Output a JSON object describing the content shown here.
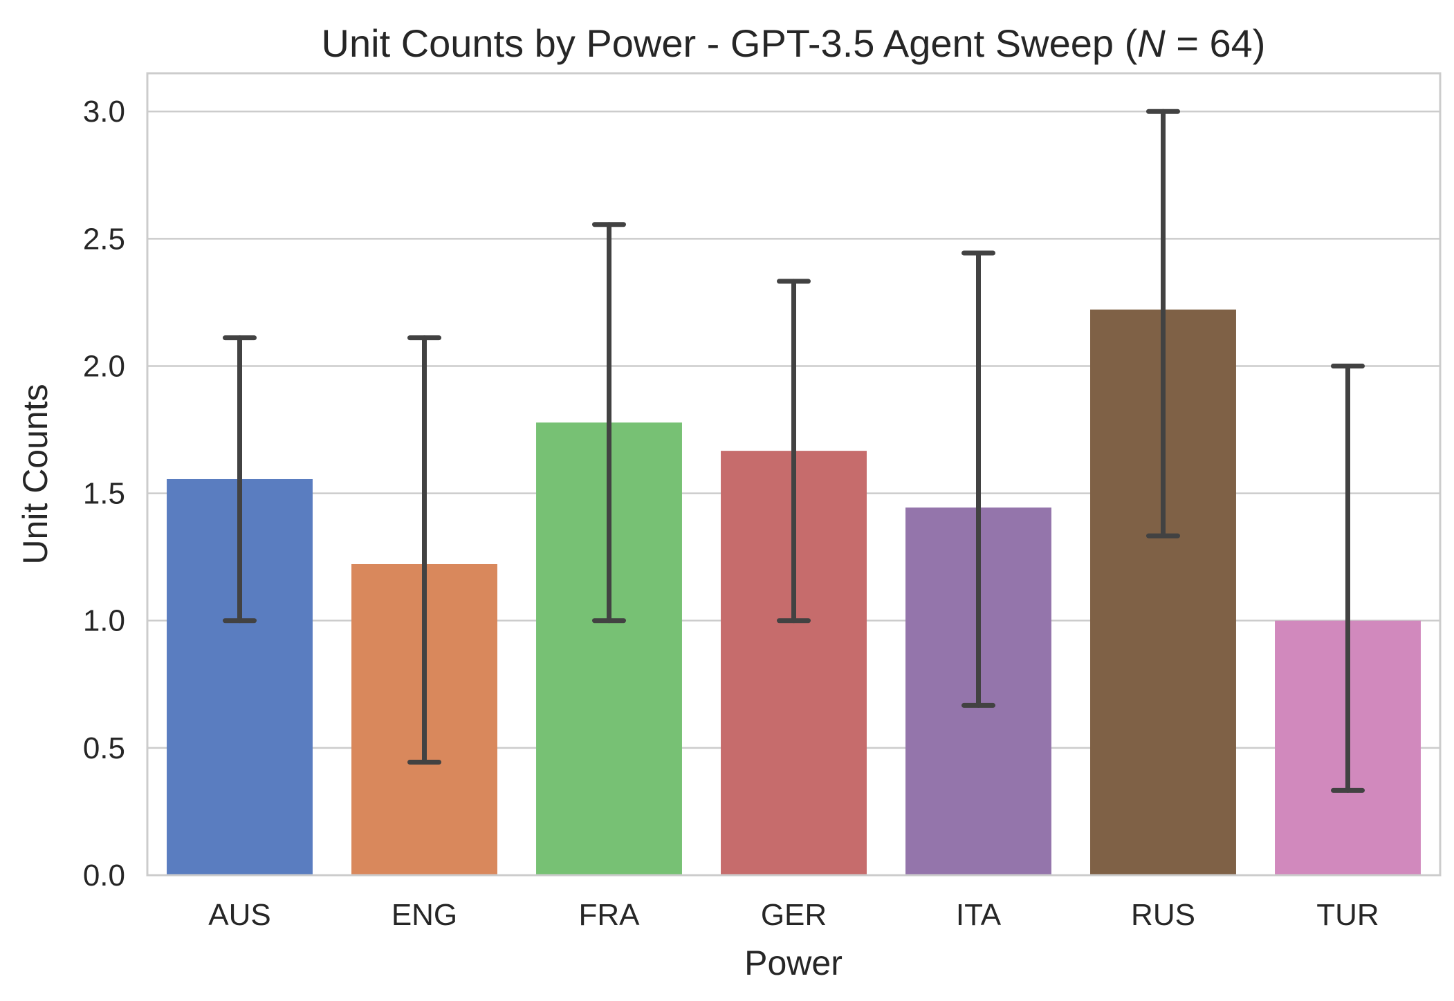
{
  "chart_data": {
    "type": "bar",
    "title": {
      "prefix": "Unit Counts by Power - GPT-3.5 Agent Sweep (",
      "italic": "N",
      "suffix": " = 64)"
    },
    "xlabel": "Power",
    "ylabel": "Unit Counts",
    "ylim": [
      0,
      3.15
    ],
    "yticks": [
      "0.0",
      "0.5",
      "1.0",
      "1.5",
      "2.0",
      "2.5",
      "3.0"
    ],
    "grid": "horizontal",
    "categories": [
      "AUS",
      "ENG",
      "FRA",
      "GER",
      "ITA",
      "RUS",
      "TUR"
    ],
    "values": [
      1.556,
      1.222,
      1.778,
      1.667,
      1.444,
      2.222,
      1.0
    ],
    "error_low": [
      1.0,
      0.444,
      1.0,
      1.0,
      0.667,
      1.333,
      0.333
    ],
    "error_high": [
      2.111,
      2.111,
      2.556,
      2.333,
      2.444,
      3.0,
      2.0
    ],
    "colors": [
      "#5a7dc0",
      "#d9885c",
      "#77c174",
      "#c66c6c",
      "#9475ab",
      "#7f6146",
      "#d189bd"
    ],
    "error_color": "#424242",
    "grid_color": "#cccccc"
  }
}
